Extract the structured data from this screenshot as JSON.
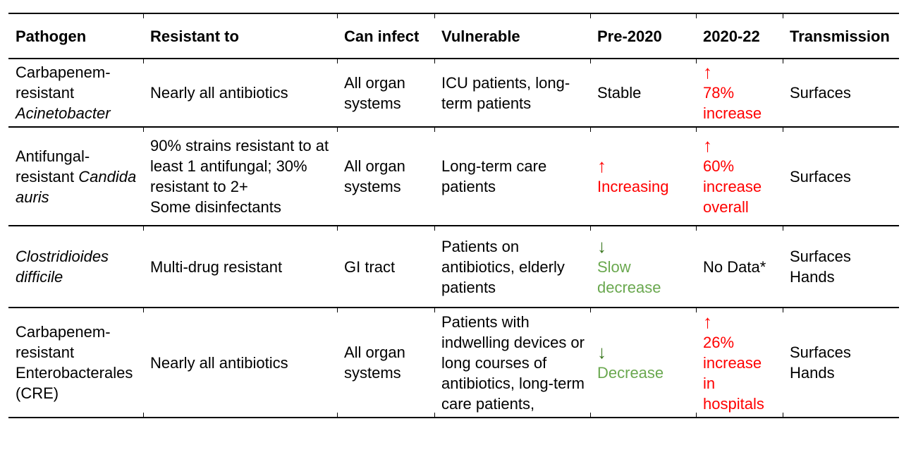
{
  "palette": {
    "ink": "#000000",
    "red": "#ff0000",
    "green": "#6aa84f",
    "green_dark": "#38761d",
    "rule": "#000000",
    "background": "#ffffff"
  },
  "table": {
    "columns": [
      {
        "key": "pathogen",
        "label": "Pathogen"
      },
      {
        "key": "resistant_to",
        "label": "Resistant to"
      },
      {
        "key": "can_infect",
        "label": "Can infect"
      },
      {
        "key": "vulnerable",
        "label": "Vulnerable"
      },
      {
        "key": "pre_2020",
        "label": "Pre-2020"
      },
      {
        "key": "y2020_22",
        "label": "2020-22"
      },
      {
        "key": "transmission",
        "label": "Transmission"
      }
    ],
    "rows": [
      {
        "pathogen": [
          {
            "text": "Carbapenem-resistant "
          },
          {
            "text": "Acinetobacter",
            "italic": true
          }
        ],
        "resistant_to": "Nearly all antibiotics",
        "can_infect": "All organ systems",
        "vulnerable": "ICU patients, long-term patients",
        "pre_2020": {
          "text": "Stable",
          "color": "ink"
        },
        "y2020_22": {
          "arrow": "↑",
          "arrow_color": "red",
          "text": "78%\nincrease",
          "color": "red"
        },
        "transmission": "Surfaces"
      },
      {
        "pathogen": [
          {
            "text": "Antifungal-resistant "
          },
          {
            "text": "Candida auris",
            "italic": true
          }
        ],
        "resistant_to": "90% strains resistant to at least 1 antifungal; 30% resistant to 2+\nSome disinfectants",
        "can_infect": "All organ systems",
        "vulnerable": "Long-term care patients",
        "pre_2020": {
          "arrow": "↑",
          "arrow_color": "red",
          "text": "Increasing",
          "color": "red"
        },
        "y2020_22": {
          "arrow": "↑",
          "arrow_color": "red",
          "text": "60%\nincrease\noverall",
          "color": "red"
        },
        "transmission": "Surfaces"
      },
      {
        "pathogen": [
          {
            "text": "Clostridioides difficile",
            "italic": true
          }
        ],
        "resistant_to": "Multi-drug resistant",
        "can_infect": "GI tract",
        "vulnerable": "Patients on antibiotics, elderly patients",
        "pre_2020": {
          "arrow": "↓",
          "arrow_color": "green_dark",
          "text": "Slow\ndecrease",
          "color": "green"
        },
        "y2020_22": {
          "text": "No Data*",
          "color": "ink"
        },
        "transmission": "Surfaces\nHands"
      },
      {
        "pathogen": [
          {
            "text": "Carbapenem-resistant Enterobacterales (CRE)"
          }
        ],
        "resistant_to": "Nearly all antibiotics",
        "can_infect": "All organ systems",
        "vulnerable": "Patients with\nindwelling devices or\nlong courses of\nantibiotics, long-term\ncare patients,",
        "pre_2020": {
          "arrow": "↓",
          "arrow_color": "green_dark",
          "text": "Decrease",
          "color": "green"
        },
        "y2020_22": {
          "arrow": "↑",
          "arrow_color": "red",
          "text": "26%\nincrease in\nhospitals",
          "color": "red"
        },
        "transmission": "Surfaces\nHands"
      }
    ]
  }
}
